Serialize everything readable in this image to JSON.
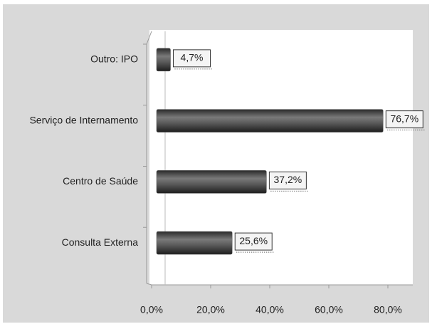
{
  "chart_data": {
    "type": "hbar",
    "categories": [
      "Outro: IPO",
      "Serviço de Internamento",
      "Centro de Saúde",
      "Consulta Externa"
    ],
    "values": [
      4.7,
      76.7,
      37.2,
      25.6
    ],
    "value_labels": [
      "4,7%",
      "76,7%",
      "37,2%",
      "25,6%"
    ],
    "color": "#555555",
    "xlim": [
      0,
      80
    ],
    "xticks": [
      {
        "value": 0,
        "label": "0,0%"
      },
      {
        "value": 20,
        "label": "20,0%"
      },
      {
        "value": 40,
        "label": "40,0%"
      },
      {
        "value": 60,
        "label": "60,0%"
      },
      {
        "value": 80,
        "label": "80,0%"
      }
    ],
    "grid": false
  }
}
